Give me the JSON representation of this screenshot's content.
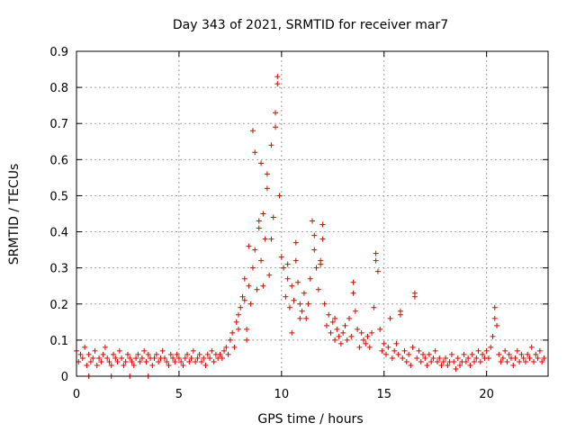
{
  "chart_data": {
    "type": "scatter",
    "title": "Day 343 of 2021, SRMTID for receiver mar7",
    "xlabel": "GPS time / hours",
    "ylabel": "SRMTID / TECUs",
    "xlim": [
      0,
      23
    ],
    "ylim": [
      0,
      0.9
    ],
    "xticks": [
      0,
      5,
      10,
      15,
      20
    ],
    "yticks": [
      0,
      0.1,
      0.2,
      0.3,
      0.4,
      0.5,
      0.6,
      0.7,
      0.8,
      0.9
    ],
    "grid": true,
    "marker": "+",
    "color": "#e00000",
    "series": [
      {
        "name": "mar7",
        "points": [
          [
            0.0,
            0.07
          ],
          [
            0.1,
            0.04
          ],
          [
            0.2,
            0.06
          ],
          [
            0.3,
            0.05
          ],
          [
            0.4,
            0.08
          ],
          [
            0.5,
            0.03
          ],
          [
            0.6,
            0.06
          ],
          [
            0.7,
            0.04
          ],
          [
            0.8,
            0.05
          ],
          [
            0.9,
            0.07
          ],
          [
            1.0,
            0.03
          ],
          [
            1.1,
            0.05
          ],
          [
            1.2,
            0.04
          ],
          [
            1.3,
            0.06
          ],
          [
            1.4,
            0.08
          ],
          [
            1.5,
            0.05
          ],
          [
            1.6,
            0.04
          ],
          [
            1.7,
            0.03
          ],
          [
            1.8,
            0.06
          ],
          [
            1.9,
            0.05
          ],
          [
            2.0,
            0.04
          ],
          [
            2.1,
            0.07
          ],
          [
            2.2,
            0.05
          ],
          [
            2.3,
            0.03
          ],
          [
            2.4,
            0.04
          ],
          [
            2.5,
            0.06
          ],
          [
            2.6,
            0.05
          ],
          [
            2.7,
            0.04
          ],
          [
            2.8,
            0.03
          ],
          [
            2.9,
            0.05
          ],
          [
            3.0,
            0.06
          ],
          [
            3.1,
            0.04
          ],
          [
            3.2,
            0.05
          ],
          [
            3.3,
            0.07
          ],
          [
            3.4,
            0.04
          ],
          [
            3.5,
            0.06
          ],
          [
            3.6,
            0.05
          ],
          [
            3.7,
            0.03
          ],
          [
            3.8,
            0.05
          ],
          [
            3.9,
            0.06
          ],
          [
            4.0,
            0.04
          ],
          [
            4.1,
            0.05
          ],
          [
            4.2,
            0.07
          ],
          [
            4.3,
            0.05
          ],
          [
            4.4,
            0.04
          ],
          [
            4.5,
            0.03
          ],
          [
            4.6,
            0.06
          ],
          [
            4.7,
            0.05
          ],
          [
            4.8,
            0.04
          ],
          [
            4.9,
            0.06
          ],
          [
            5.0,
            0.05
          ],
          [
            5.1,
            0.04
          ],
          [
            5.2,
            0.03
          ],
          [
            5.3,
            0.05
          ],
          [
            5.4,
            0.06
          ],
          [
            5.5,
            0.04
          ],
          [
            5.6,
            0.05
          ],
          [
            5.7,
            0.07
          ],
          [
            5.8,
            0.04
          ],
          [
            5.9,
            0.05
          ],
          [
            6.0,
            0.06
          ],
          [
            6.1,
            0.04
          ],
          [
            6.2,
            0.05
          ],
          [
            6.3,
            0.03
          ],
          [
            6.4,
            0.06
          ],
          [
            6.5,
            0.05
          ],
          [
            6.6,
            0.07
          ],
          [
            6.7,
            0.04
          ],
          [
            6.8,
            0.06
          ],
          [
            6.9,
            0.05
          ],
          [
            7.0,
            0.06
          ],
          [
            7.1,
            0.05
          ],
          [
            7.2,
            0.07
          ],
          [
            7.3,
            0.08
          ],
          [
            7.4,
            0.06
          ],
          [
            7.5,
            0.1
          ],
          [
            7.6,
            0.12
          ],
          [
            7.7,
            0.08
          ],
          [
            7.8,
            0.15
          ],
          [
            7.9,
            0.17
          ],
          [
            8.0,
            0.19
          ],
          [
            8.1,
            0.22
          ],
          [
            8.2,
            0.27
          ],
          [
            8.3,
            0.13
          ],
          [
            8.4,
            0.25
          ],
          [
            8.5,
            0.2
          ],
          [
            8.6,
            0.3
          ],
          [
            8.7,
            0.35
          ],
          [
            8.8,
            0.24
          ],
          [
            8.9,
            0.41
          ],
          [
            9.0,
            0.32
          ],
          [
            9.1,
            0.45
          ],
          [
            9.2,
            0.38
          ],
          [
            9.3,
            0.52
          ],
          [
            9.4,
            0.28
          ],
          [
            9.5,
            0.64
          ],
          [
            9.6,
            0.44
          ],
          [
            9.7,
            0.73
          ],
          [
            9.8,
            0.83
          ],
          [
            9.9,
            0.5
          ],
          [
            10.0,
            0.33
          ],
          [
            10.1,
            0.3
          ],
          [
            10.2,
            0.22
          ],
          [
            10.3,
            0.27
          ],
          [
            10.4,
            0.19
          ],
          [
            10.5,
            0.25
          ],
          [
            10.6,
            0.21
          ],
          [
            10.7,
            0.32
          ],
          [
            10.8,
            0.26
          ],
          [
            10.9,
            0.2
          ],
          [
            11.0,
            0.18
          ],
          [
            11.1,
            0.23
          ],
          [
            11.2,
            0.16
          ],
          [
            11.3,
            0.2
          ],
          [
            11.4,
            0.27
          ],
          [
            11.5,
            0.43
          ],
          [
            11.6,
            0.35
          ],
          [
            11.7,
            0.3
          ],
          [
            11.8,
            0.24
          ],
          [
            11.9,
            0.32
          ],
          [
            12.0,
            0.42
          ],
          [
            12.1,
            0.2
          ],
          [
            12.2,
            0.14
          ],
          [
            12.3,
            0.17
          ],
          [
            12.4,
            0.12
          ],
          [
            12.5,
            0.15
          ],
          [
            12.6,
            0.1
          ],
          [
            12.7,
            0.13
          ],
          [
            12.8,
            0.11
          ],
          [
            12.9,
            0.09
          ],
          [
            13.0,
            0.12
          ],
          [
            13.1,
            0.14
          ],
          [
            13.2,
            0.1
          ],
          [
            13.3,
            0.16
          ],
          [
            13.4,
            0.11
          ],
          [
            13.5,
            0.26
          ],
          [
            13.6,
            0.18
          ],
          [
            13.7,
            0.13
          ],
          [
            13.8,
            0.08
          ],
          [
            13.9,
            0.12
          ],
          [
            14.0,
            0.1
          ],
          [
            14.1,
            0.09
          ],
          [
            14.2,
            0.11
          ],
          [
            14.3,
            0.08
          ],
          [
            14.4,
            0.12
          ],
          [
            14.5,
            0.19
          ],
          [
            14.6,
            0.34
          ],
          [
            14.7,
            0.29
          ],
          [
            14.8,
            0.13
          ],
          [
            14.9,
            0.07
          ],
          [
            15.0,
            0.09
          ],
          [
            15.1,
            0.06
          ],
          [
            15.2,
            0.08
          ],
          [
            15.3,
            0.16
          ],
          [
            15.4,
            0.05
          ],
          [
            15.5,
            0.07
          ],
          [
            15.6,
            0.09
          ],
          [
            15.7,
            0.06
          ],
          [
            15.8,
            0.18
          ],
          [
            15.9,
            0.05
          ],
          [
            16.0,
            0.07
          ],
          [
            16.1,
            0.04
          ],
          [
            16.2,
            0.06
          ],
          [
            16.3,
            0.03
          ],
          [
            16.4,
            0.08
          ],
          [
            16.5,
            0.23
          ],
          [
            16.6,
            0.05
          ],
          [
            16.7,
            0.07
          ],
          [
            16.8,
            0.04
          ],
          [
            16.9,
            0.06
          ],
          [
            17.0,
            0.05
          ],
          [
            17.1,
            0.03
          ],
          [
            17.2,
            0.06
          ],
          [
            17.3,
            0.04
          ],
          [
            17.4,
            0.05
          ],
          [
            17.5,
            0.07
          ],
          [
            17.6,
            0.04
          ],
          [
            17.7,
            0.05
          ],
          [
            17.8,
            0.03
          ],
          [
            17.9,
            0.04
          ],
          [
            18.0,
            0.05
          ],
          [
            18.1,
            0.03
          ],
          [
            18.2,
            0.04
          ],
          [
            18.3,
            0.06
          ],
          [
            18.4,
            0.04
          ],
          [
            18.5,
            0.02
          ],
          [
            18.6,
            0.05
          ],
          [
            18.7,
            0.03
          ],
          [
            18.8,
            0.04
          ],
          [
            18.9,
            0.06
          ],
          [
            19.0,
            0.04
          ],
          [
            19.1,
            0.05
          ],
          [
            19.2,
            0.03
          ],
          [
            19.3,
            0.06
          ],
          [
            19.4,
            0.04
          ],
          [
            19.5,
            0.05
          ],
          [
            19.6,
            0.07
          ],
          [
            19.7,
            0.04
          ],
          [
            19.8,
            0.06
          ],
          [
            19.9,
            0.05
          ],
          [
            20.0,
            0.07
          ],
          [
            20.1,
            0.05
          ],
          [
            20.2,
            0.08
          ],
          [
            20.3,
            0.11
          ],
          [
            20.4,
            0.19
          ],
          [
            20.5,
            0.14
          ],
          [
            20.6,
            0.06
          ],
          [
            20.7,
            0.04
          ],
          [
            20.8,
            0.05
          ],
          [
            20.9,
            0.07
          ],
          [
            21.0,
            0.04
          ],
          [
            21.1,
            0.06
          ],
          [
            21.2,
            0.05
          ],
          [
            21.3,
            0.03
          ],
          [
            21.4,
            0.05
          ],
          [
            21.5,
            0.07
          ],
          [
            21.6,
            0.04
          ],
          [
            21.7,
            0.06
          ],
          [
            21.8,
            0.05
          ],
          [
            21.9,
            0.04
          ],
          [
            22.0,
            0.06
          ],
          [
            22.1,
            0.05
          ],
          [
            22.2,
            0.08
          ],
          [
            22.3,
            0.04
          ],
          [
            22.4,
            0.06
          ],
          [
            22.5,
            0.05
          ],
          [
            22.6,
            0.07
          ],
          [
            22.7,
            0.04
          ],
          [
            22.8,
            0.05
          ],
          [
            8.6,
            0.68
          ],
          [
            8.7,
            0.62
          ],
          [
            9.0,
            0.59
          ],
          [
            9.3,
            0.56
          ],
          [
            9.8,
            0.81
          ],
          [
            9.7,
            0.69
          ],
          [
            8.9,
            0.43
          ],
          [
            9.5,
            0.38
          ],
          [
            8.4,
            0.36
          ],
          [
            10.3,
            0.31
          ],
          [
            11.6,
            0.39
          ],
          [
            10.7,
            0.37
          ],
          [
            12.0,
            0.38
          ],
          [
            9.1,
            0.25
          ],
          [
            10.9,
            0.16
          ],
          [
            7.9,
            0.13
          ],
          [
            11.9,
            0.31
          ],
          [
            13.5,
            0.23
          ],
          [
            14.6,
            0.32
          ],
          [
            8.2,
            0.21
          ],
          [
            0.6,
            0.0
          ],
          [
            1.7,
            0.0
          ],
          [
            2.6,
            0.0
          ],
          [
            3.5,
            0.0
          ],
          [
            16.5,
            0.22
          ],
          [
            15.8,
            0.17
          ],
          [
            20.4,
            0.16
          ],
          [
            8.3,
            0.1
          ],
          [
            10.5,
            0.12
          ],
          [
            12.6,
            0.16
          ]
        ]
      }
    ]
  }
}
